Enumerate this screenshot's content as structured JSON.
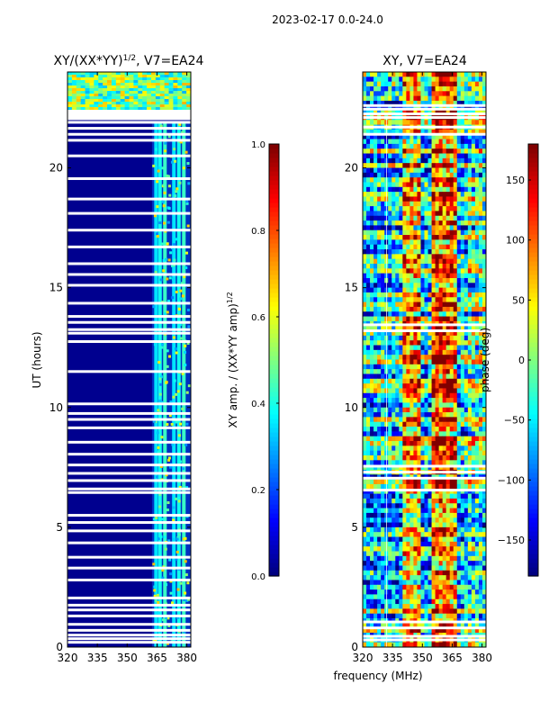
{
  "figure": {
    "suptitle": "2023-02-17 0.0-24.0",
    "xlabel": "frequency (MHz)"
  },
  "chart_data": [
    {
      "type": "heatmap",
      "title_base": "XY/(XX*YY)",
      "title_exp": "1/2",
      "title_tail": ", V7=EA24",
      "xlabel": "",
      "ylabel": "UT (hours)",
      "xlim": [
        320,
        382
      ],
      "ylim": [
        0,
        24
      ],
      "xticks": [
        320,
        335,
        350,
        365,
        380
      ],
      "yticks": [
        0,
        5,
        10,
        15,
        20
      ],
      "band_start": 362.5,
      "bright_columns": [
        364.5,
        366.5,
        369,
        373.5,
        376,
        378.5
      ],
      "blank_rows_utc": [
        0.2,
        0.35,
        0.5,
        0.7,
        0.95,
        1.3,
        1.55,
        1.75,
        2.05,
        2.8,
        3.3,
        3.75,
        4.35,
        4.85,
        5.2,
        5.5,
        6.45,
        6.6,
        6.95,
        7.25,
        7.6,
        8.05,
        8.55,
        9.15,
        9.5,
        9.75,
        10.15,
        11.5,
        12.75,
        13.1,
        13.25,
        13.55,
        13.8,
        14.35,
        15.1,
        15.55,
        16.0,
        16.7,
        17.4,
        18.1,
        18.7,
        19.55,
        20.5,
        21.15,
        21.4,
        21.65,
        21.9,
        22.05,
        22.15,
        22.3
      ],
      "colorbar": {
        "label": "XY amp. / (XX*YY amp)",
        "label_exp": "1/2",
        "range": [
          0.0,
          1.0
        ],
        "ticks": [
          "0.0",
          "0.2",
          "0.4",
          "0.6",
          "0.8",
          "1.0"
        ]
      }
    },
    {
      "type": "heatmap",
      "title": "XY, V7=EA24",
      "xlabel": "",
      "ylabel": "",
      "xlim": [
        320,
        382
      ],
      "ylim": [
        0,
        24
      ],
      "xticks": [
        320,
        335,
        350,
        365,
        380
      ],
      "yticks": [
        0,
        5,
        10,
        15,
        20
      ],
      "blank_rows_utc": [
        0.3,
        0.45,
        0.8,
        1.05,
        6.55,
        7.05,
        7.3,
        7.55,
        13.2,
        13.45,
        21.4,
        21.7,
        22.1,
        22.25,
        22.45,
        22.6
      ],
      "colorbar": {
        "label": "phase (deg)",
        "range": [
          -180,
          180
        ],
        "ticks": [
          "−150",
          "−100",
          "−50",
          "0",
          "50",
          "100",
          "150"
        ]
      }
    }
  ]
}
